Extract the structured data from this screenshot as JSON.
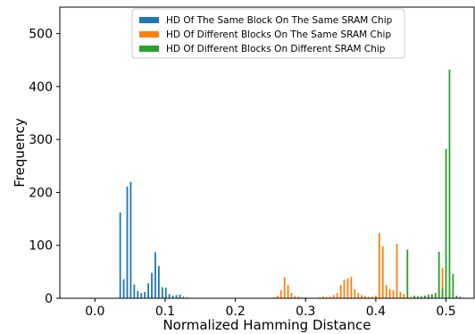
{
  "chart_data": {
    "type": "bar",
    "xlabel": "Normalized Hamming Distance",
    "ylabel": "Frequency",
    "xlim": [
      -0.05,
      0.54
    ],
    "ylim": [
      0,
      550
    ],
    "xticks": [
      0.0,
      0.1,
      0.2,
      0.3,
      0.4,
      0.5
    ],
    "xtick_labels": [
      "0.0",
      "0.1",
      "0.2",
      "0.3",
      "0.4",
      "0.5"
    ],
    "yticks": [
      0,
      100,
      200,
      300,
      400,
      500
    ],
    "ytick_labels": [
      "0",
      "100",
      "200",
      "300",
      "400",
      "500"
    ],
    "grid": false,
    "legend_position": "top-center",
    "series": [
      {
        "name": "HD Of The Same Block On The Same SRAM Chip",
        "color": "#1f77b4",
        "x": [
          0.036,
          0.041,
          0.046,
          0.051,
          0.056,
          0.061,
          0.066,
          0.071,
          0.076,
          0.081,
          0.086,
          0.091,
          0.096,
          0.101,
          0.106,
          0.111,
          0.116,
          0.121,
          0.126,
          0.131,
          0.136
        ],
        "values": [
          162,
          36,
          211,
          220,
          26,
          14,
          10,
          12,
          28,
          48,
          87,
          61,
          21,
          20,
          8,
          5,
          6,
          7,
          3,
          2,
          1
        ]
      },
      {
        "name": "HD Of Different Blocks On The Same SRAM Chip",
        "color": "#ff7f0e",
        "x": [
          0.255,
          0.26,
          0.265,
          0.27,
          0.275,
          0.28,
          0.285,
          0.29,
          0.295,
          0.3,
          0.305,
          0.31,
          0.315,
          0.32,
          0.325,
          0.33,
          0.335,
          0.34,
          0.345,
          0.35,
          0.355,
          0.36,
          0.365,
          0.37,
          0.375,
          0.38,
          0.385,
          0.39,
          0.395,
          0.4,
          0.405,
          0.41,
          0.415,
          0.42,
          0.425,
          0.43,
          0.435,
          0.44,
          0.445,
          0.45,
          0.455,
          0.46,
          0.465,
          0.47,
          0.475,
          0.48,
          0.485,
          0.49,
          0.495,
          0.5,
          0.505
        ],
        "values": [
          2,
          5,
          15,
          40,
          25,
          10,
          4,
          3,
          2,
          2,
          1,
          1,
          1,
          2,
          3,
          2,
          3,
          6,
          10,
          25,
          35,
          38,
          40,
          17,
          10,
          6,
          4,
          3,
          3,
          5,
          123,
          98,
          25,
          18,
          15,
          103,
          12,
          8,
          4,
          3,
          2,
          2,
          2,
          3,
          3,
          5,
          10,
          22,
          57,
          30,
          10
        ]
      },
      {
        "name": "HD Of Different Blocks On Different SRAM Chip",
        "color": "#2ca02c",
        "x": [
          0.445,
          0.455,
          0.46,
          0.465,
          0.47,
          0.475,
          0.48,
          0.485,
          0.49,
          0.495,
          0.5,
          0.505,
          0.51,
          0.515,
          0.52,
          0.525
        ],
        "values": [
          92,
          5,
          4,
          4,
          5,
          7,
          8,
          10,
          88,
          18,
          282,
          432,
          46,
          5,
          3,
          1
        ]
      }
    ]
  }
}
